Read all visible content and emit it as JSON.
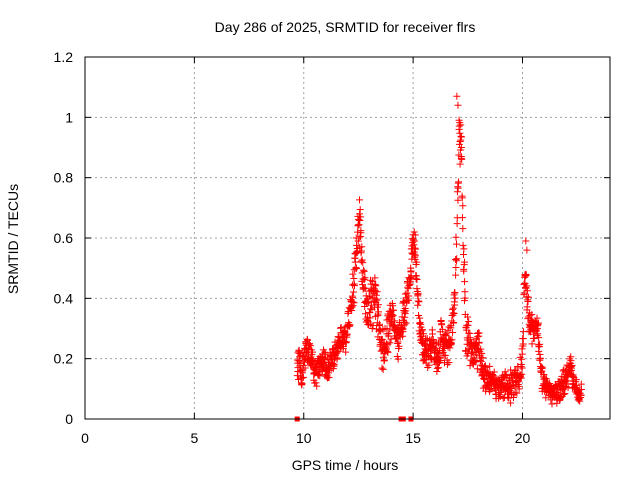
{
  "chart_data": {
    "type": "scatter",
    "title": "Day 286 of 2025, SRMTID for receiver flrs",
    "xlabel": "GPS time / hours",
    "ylabel": "SRMTID / TECUs",
    "xlim": [
      0,
      24
    ],
    "ylim": [
      0,
      1.2
    ],
    "xticks": [
      0,
      5,
      10,
      15,
      20
    ],
    "yticks": [
      0,
      0.2,
      0.4,
      0.6,
      0.8,
      1,
      1.2
    ],
    "xtick_labels": [
      "0",
      "5",
      "10",
      "15",
      "20"
    ],
    "ytick_labels": [
      "0",
      "0.2",
      "0.4",
      "0.6",
      "0.8",
      "1",
      "1.2"
    ],
    "grid": true,
    "marker": "plus",
    "colors": {
      "marker": "#ff0000",
      "grid": "#a0a0a0",
      "axis": "#000000"
    },
    "series": [
      {
        "name": "SRMTID",
        "envelope": [
          [
            9.7,
            0.16
          ],
          [
            9.8,
            0.2
          ],
          [
            9.9,
            0.14
          ],
          [
            10.0,
            0.18
          ],
          [
            10.1,
            0.24
          ],
          [
            10.3,
            0.2
          ],
          [
            10.5,
            0.15
          ],
          [
            10.7,
            0.17
          ],
          [
            10.9,
            0.19
          ],
          [
            11.1,
            0.16
          ],
          [
            11.3,
            0.2
          ],
          [
            11.5,
            0.22
          ],
          [
            11.7,
            0.26
          ],
          [
            11.9,
            0.28
          ],
          [
            12.1,
            0.33
          ],
          [
            12.3,
            0.45
          ],
          [
            12.45,
            0.6
          ],
          [
            12.55,
            0.66
          ],
          [
            12.7,
            0.48
          ],
          [
            12.9,
            0.36
          ],
          [
            13.1,
            0.38
          ],
          [
            13.3,
            0.4
          ],
          [
            13.5,
            0.26
          ],
          [
            13.7,
            0.22
          ],
          [
            13.9,
            0.3
          ],
          [
            14.1,
            0.36
          ],
          [
            14.3,
            0.26
          ],
          [
            14.5,
            0.32
          ],
          [
            14.7,
            0.38
          ],
          [
            14.9,
            0.5
          ],
          [
            15.0,
            0.58
          ],
          [
            15.1,
            0.55
          ],
          [
            15.3,
            0.3
          ],
          [
            15.5,
            0.23
          ],
          [
            15.7,
            0.22
          ],
          [
            15.9,
            0.26
          ],
          [
            16.1,
            0.2
          ],
          [
            16.3,
            0.28
          ],
          [
            16.5,
            0.24
          ],
          [
            16.7,
            0.27
          ],
          [
            16.9,
            0.38
          ],
          [
            17.05,
            0.7
          ],
          [
            17.1,
            0.95
          ],
          [
            17.2,
            0.88
          ],
          [
            17.3,
            0.58
          ],
          [
            17.4,
            0.3
          ],
          [
            17.6,
            0.24
          ],
          [
            17.8,
            0.2
          ],
          [
            18.0,
            0.24
          ],
          [
            18.2,
            0.14
          ],
          [
            18.4,
            0.12
          ],
          [
            18.6,
            0.14
          ],
          [
            18.8,
            0.1
          ],
          [
            19.0,
            0.11
          ],
          [
            19.2,
            0.12
          ],
          [
            19.4,
            0.1
          ],
          [
            19.6,
            0.13
          ],
          [
            19.8,
            0.14
          ],
          [
            20.0,
            0.2
          ],
          [
            20.1,
            0.5
          ],
          [
            20.2,
            0.44
          ],
          [
            20.3,
            0.32
          ],
          [
            20.5,
            0.28
          ],
          [
            20.7,
            0.32
          ],
          [
            20.8,
            0.2
          ],
          [
            20.9,
            0.13
          ],
          [
            21.1,
            0.1
          ],
          [
            21.3,
            0.08
          ],
          [
            21.5,
            0.09
          ],
          [
            21.7,
            0.1
          ],
          [
            21.9,
            0.12
          ],
          [
            22.1,
            0.15
          ],
          [
            22.2,
            0.19
          ],
          [
            22.3,
            0.12
          ],
          [
            22.5,
            0.09
          ],
          [
            22.7,
            0.08
          ]
        ],
        "spread": [
          [
            9.7,
            0.06
          ],
          [
            11.5,
            0.05
          ],
          [
            12.3,
            0.08
          ],
          [
            12.6,
            0.1
          ],
          [
            13.5,
            0.09
          ],
          [
            14.5,
            0.08
          ],
          [
            15.0,
            0.06
          ],
          [
            16.0,
            0.06
          ],
          [
            17.15,
            0.12
          ],
          [
            18.0,
            0.07
          ],
          [
            19.0,
            0.05
          ],
          [
            20.1,
            0.08
          ],
          [
            21.0,
            0.05
          ],
          [
            22.0,
            0.05
          ],
          [
            22.7,
            0.04
          ]
        ],
        "peaks": [
          [
            17.0,
            1.07
          ],
          [
            17.05,
            1.04
          ],
          [
            17.1,
            0.96
          ],
          [
            17.15,
            0.92
          ],
          [
            17.2,
            0.87
          ],
          [
            12.55,
            0.68
          ],
          [
            12.6,
            0.67
          ],
          [
            15.05,
            0.62
          ],
          [
            15.1,
            0.61
          ],
          [
            20.15,
            0.59
          ],
          [
            20.2,
            0.56
          ],
          [
            17.35,
            0.52
          ],
          [
            12.4,
            0.6
          ],
          [
            14.95,
            0.55
          ]
        ],
        "zero_points": [
          9.7,
          14.45,
          14.55,
          14.9
        ]
      }
    ]
  }
}
